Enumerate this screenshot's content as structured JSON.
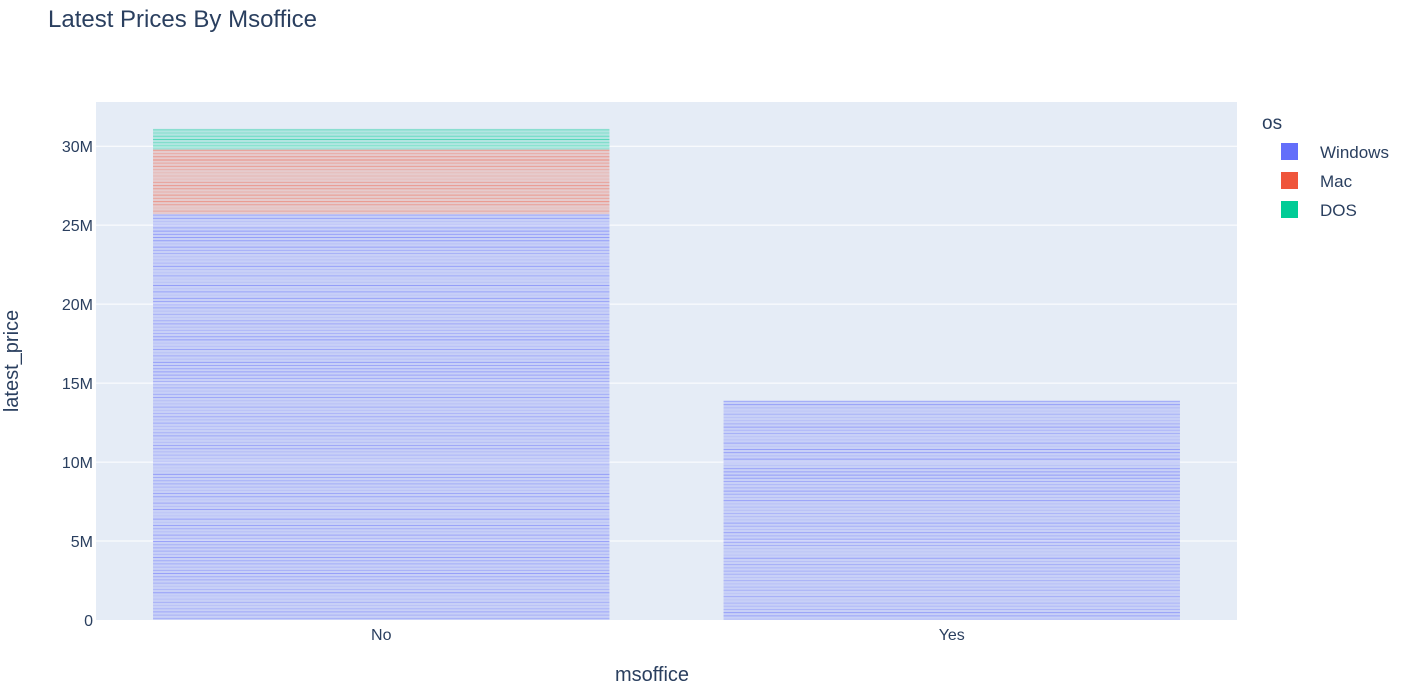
{
  "chart_data": {
    "type": "bar",
    "title": "Latest Prices By Msoffice",
    "xlabel": "msoffice",
    "ylabel": "latest_price",
    "categories": [
      "No",
      "Yes"
    ],
    "ylim": [
      0,
      32800000
    ],
    "yticks": [
      0,
      5000000,
      10000000,
      15000000,
      20000000,
      25000000,
      30000000
    ],
    "ytick_labels": [
      "0",
      "5M",
      "10M",
      "15M",
      "20M",
      "25M",
      "30M"
    ],
    "barmode": "stack",
    "grid": true,
    "legend_title": "os",
    "legend_position": "top-right",
    "series": [
      {
        "name": "Windows",
        "color": "#636efa",
        "values": [
          25700000,
          13900000
        ]
      },
      {
        "name": "Mac",
        "color": "#ef553b",
        "values": [
          4100000,
          0
        ]
      },
      {
        "name": "DOS",
        "color": "#00cc96",
        "values": [
          1300000,
          0
        ]
      }
    ],
    "plot_bg": "#e5ecf6"
  }
}
